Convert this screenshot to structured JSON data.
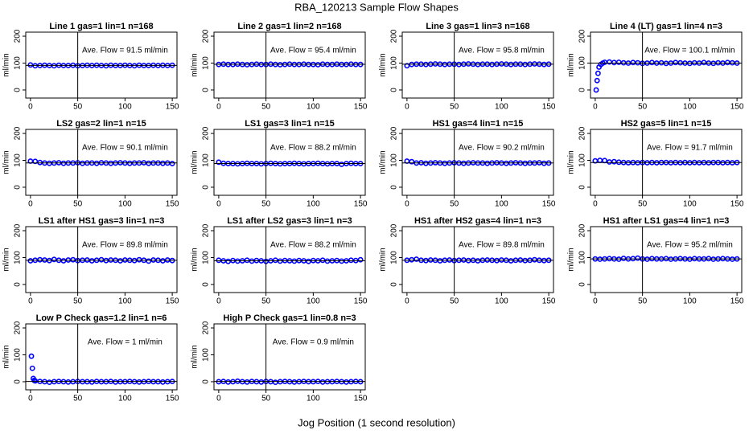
{
  "title": "RBA_120213  Sample Flow Shapes",
  "xlabel": "Jog Position (1 second resolution)",
  "chart_data": [
    {
      "type": "scatter",
      "title": "Line 1 gas=1 lin=1 n=168",
      "ylabel": "ml/min",
      "color": "#0000ff",
      "xlim": [
        -5,
        155
      ],
      "xticks": [
        0,
        50,
        100,
        150
      ],
      "ylim": [
        -30,
        215
      ],
      "yticks": [
        0,
        100,
        200
      ],
      "vline": 50,
      "mean": {
        "value": 91.5,
        "label": "Ave. Flow = 91.5  ml/min"
      },
      "x": [
        0,
        5,
        10,
        15,
        20,
        25,
        30,
        35,
        40,
        45,
        50,
        55,
        60,
        65,
        70,
        75,
        80,
        85,
        90,
        95,
        100,
        105,
        110,
        115,
        120,
        125,
        130,
        135,
        140,
        145,
        150
      ],
      "values": [
        93,
        90,
        91,
        92,
        91,
        90,
        92,
        91,
        91,
        92,
        90,
        91,
        92,
        91,
        92,
        91,
        90,
        92,
        91,
        91,
        92,
        91,
        90,
        92,
        91,
        91,
        92,
        91,
        92,
        91,
        92
      ]
    },
    {
      "type": "scatter",
      "title": "Line 2 gas=1 lin=2 n=168",
      "ylabel": "ml/min",
      "color": "#0000ff",
      "xlim": [
        -5,
        155
      ],
      "xticks": [
        0,
        50,
        100,
        150
      ],
      "ylim": [
        -30,
        215
      ],
      "yticks": [
        0,
        100,
        200
      ],
      "vline": 50,
      "mean": {
        "value": 95.4,
        "label": "Ave. Flow = 95.4  ml/min"
      },
      "x": [
        0,
        5,
        10,
        15,
        20,
        25,
        30,
        35,
        40,
        45,
        50,
        55,
        60,
        65,
        70,
        75,
        80,
        85,
        90,
        95,
        100,
        105,
        110,
        115,
        120,
        125,
        130,
        135,
        140,
        145,
        150
      ],
      "values": [
        95,
        96,
        95,
        95,
        96,
        95,
        94,
        95,
        96,
        95,
        95,
        96,
        95,
        94,
        95,
        96,
        95,
        95,
        96,
        95,
        95,
        94,
        96,
        95,
        95,
        96,
        95,
        95,
        96,
        95,
        95
      ]
    },
    {
      "type": "scatter",
      "title": "Line 3 gas=1 lin=3 n=168",
      "ylabel": "ml/min",
      "color": "#0000ff",
      "xlim": [
        -5,
        155
      ],
      "xticks": [
        0,
        50,
        100,
        150
      ],
      "ylim": [
        -30,
        215
      ],
      "yticks": [
        0,
        100,
        200
      ],
      "vline": 50,
      "mean": {
        "value": 95.8,
        "label": "Ave. Flow = 95.8  ml/min"
      },
      "x": [
        0,
        5,
        10,
        15,
        20,
        25,
        30,
        35,
        40,
        45,
        50,
        55,
        60,
        65,
        70,
        75,
        80,
        85,
        90,
        95,
        100,
        105,
        110,
        115,
        120,
        125,
        130,
        135,
        140,
        145,
        150
      ],
      "values": [
        90,
        95,
        96,
        96,
        95,
        96,
        97,
        96,
        95,
        96,
        96,
        95,
        96,
        97,
        96,
        95,
        96,
        96,
        95,
        96,
        97,
        96,
        95,
        96,
        96,
        95,
        96,
        97,
        96,
        95,
        96
      ]
    },
    {
      "type": "scatter",
      "title": "Line 4 (LT) gas=1 lin=4 n=3",
      "ylabel": "ml/min",
      "color": "#0000ff",
      "xlim": [
        -5,
        155
      ],
      "xticks": [
        0,
        50,
        100,
        150
      ],
      "ylim": [
        -30,
        215
      ],
      "yticks": [
        0,
        100,
        200
      ],
      "vline": 50,
      "mean": {
        "value": 100.1,
        "label": "Ave. Flow = 100.1  ml/min"
      },
      "x": [
        1,
        2,
        3,
        4,
        6,
        8,
        10,
        15,
        20,
        25,
        30,
        35,
        40,
        45,
        50,
        55,
        60,
        65,
        70,
        75,
        80,
        85,
        90,
        95,
        100,
        105,
        110,
        115,
        120,
        125,
        130,
        135,
        140,
        145,
        150
      ],
      "values": [
        0,
        35,
        62,
        85,
        95,
        100,
        103,
        104,
        102,
        103,
        101,
        100,
        102,
        101,
        99,
        100,
        102,
        100,
        101,
        99,
        100,
        102,
        101,
        100,
        99,
        101,
        100,
        102,
        100,
        99,
        101,
        100,
        102,
        101,
        100
      ]
    },
    {
      "type": "scatter",
      "title": "LS2 gas=2 lin=1 n=15",
      "ylabel": "ml/min",
      "color": "#0000ff",
      "xlim": [
        -5,
        155
      ],
      "xticks": [
        0,
        50,
        100,
        150
      ],
      "ylim": [
        -30,
        215
      ],
      "yticks": [
        0,
        100,
        200
      ],
      "vline": 50,
      "mean": {
        "value": 90.1,
        "label": "Ave. Flow = 90.1  ml/min"
      },
      "x": [
        0,
        5,
        10,
        15,
        20,
        25,
        30,
        35,
        40,
        45,
        50,
        55,
        60,
        65,
        70,
        75,
        80,
        85,
        90,
        95,
        100,
        105,
        110,
        115,
        120,
        125,
        130,
        135,
        140,
        145,
        150
      ],
      "values": [
        97,
        96,
        92,
        90,
        89,
        90,
        91,
        89,
        90,
        90,
        91,
        89,
        90,
        90,
        89,
        91,
        90,
        89,
        90,
        91,
        90,
        89,
        90,
        90,
        91,
        89,
        90,
        90,
        89,
        90,
        88
      ]
    },
    {
      "type": "scatter",
      "title": "LS1 gas=3 lin=1 n=15",
      "ylabel": "ml/min",
      "color": "#0000ff",
      "xlim": [
        -5,
        155
      ],
      "xticks": [
        0,
        50,
        100,
        150
      ],
      "ylim": [
        -30,
        215
      ],
      "yticks": [
        0,
        100,
        200
      ],
      "vline": 50,
      "mean": {
        "value": 88.2,
        "label": "Ave. Flow = 88.2  ml/min"
      },
      "x": [
        0,
        5,
        10,
        15,
        20,
        25,
        30,
        35,
        40,
        45,
        50,
        55,
        60,
        65,
        70,
        75,
        80,
        85,
        90,
        95,
        100,
        105,
        110,
        115,
        120,
        125,
        130,
        135,
        140,
        145,
        150
      ],
      "values": [
        93,
        89,
        88,
        88,
        87,
        88,
        89,
        88,
        88,
        87,
        88,
        89,
        88,
        87,
        88,
        88,
        89,
        88,
        87,
        88,
        88,
        89,
        88,
        87,
        88,
        88,
        85,
        88,
        89,
        88,
        88
      ]
    },
    {
      "type": "scatter",
      "title": "HS1 gas=4 lin=1 n=15",
      "ylabel": "ml/min",
      "color": "#0000ff",
      "xlim": [
        -5,
        155
      ],
      "xticks": [
        0,
        50,
        100,
        150
      ],
      "ylim": [
        -30,
        215
      ],
      "yticks": [
        0,
        100,
        200
      ],
      "vline": 50,
      "mean": {
        "value": 90.2,
        "label": "Ave. Flow = 90.2  ml/min"
      },
      "x": [
        0,
        5,
        10,
        15,
        20,
        25,
        30,
        35,
        40,
        45,
        50,
        55,
        60,
        65,
        70,
        75,
        80,
        85,
        90,
        95,
        100,
        105,
        110,
        115,
        120,
        125,
        130,
        135,
        140,
        145,
        150
      ],
      "values": [
        97,
        95,
        90,
        91,
        89,
        90,
        91,
        90,
        89,
        90,
        91,
        90,
        89,
        90,
        91,
        90,
        90,
        89,
        90,
        91,
        90,
        89,
        90,
        91,
        90,
        89,
        90,
        90,
        91,
        89,
        90
      ]
    },
    {
      "type": "scatter",
      "title": "HS2 gas=5 lin=1 n=15",
      "ylabel": "ml/min",
      "color": "#0000ff",
      "xlim": [
        -5,
        155
      ],
      "xticks": [
        0,
        50,
        100,
        150
      ],
      "ylim": [
        -30,
        215
      ],
      "yticks": [
        0,
        100,
        200
      ],
      "vline": 50,
      "mean": {
        "value": 91.7,
        "label": "Ave. Flow = 91.7  ml/min"
      },
      "x": [
        0,
        5,
        10,
        15,
        20,
        25,
        30,
        35,
        40,
        45,
        50,
        55,
        60,
        65,
        70,
        75,
        80,
        85,
        90,
        95,
        100,
        105,
        110,
        115,
        120,
        125,
        130,
        135,
        140,
        145,
        150
      ],
      "values": [
        98,
        100,
        99,
        94,
        95,
        93,
        92,
        91,
        92,
        91,
        92,
        91,
        92,
        91,
        92,
        92,
        91,
        92,
        91,
        92,
        91,
        92,
        91,
        92,
        91,
        92,
        92,
        91,
        92,
        91,
        92
      ]
    },
    {
      "type": "scatter",
      "title": "LS1 after HS1 gas=3 lin=1 n=3",
      "ylabel": "ml/min",
      "color": "#0000ff",
      "xlim": [
        -5,
        155
      ],
      "xticks": [
        0,
        50,
        100,
        150
      ],
      "ylim": [
        -30,
        215
      ],
      "yticks": [
        0,
        100,
        200
      ],
      "vline": 50,
      "mean": {
        "value": 89.8,
        "label": "Ave. Flow = 89.8  ml/min"
      },
      "x": [
        0,
        5,
        10,
        15,
        20,
        25,
        30,
        35,
        40,
        45,
        50,
        55,
        60,
        65,
        70,
        75,
        80,
        85,
        90,
        95,
        100,
        105,
        110,
        115,
        120,
        125,
        130,
        135,
        140,
        145,
        150
      ],
      "values": [
        88,
        90,
        92,
        91,
        89,
        93,
        90,
        88,
        91,
        92,
        89,
        90,
        91,
        88,
        90,
        92,
        89,
        91,
        90,
        88,
        91,
        90,
        89,
        92,
        90,
        87,
        91,
        90,
        88,
        91,
        89
      ]
    },
    {
      "type": "scatter",
      "title": "LS1 after LS2 gas=3 lin=1 n=3",
      "ylabel": "ml/min",
      "color": "#0000ff",
      "xlim": [
        -5,
        155
      ],
      "xticks": [
        0,
        50,
        100,
        150
      ],
      "ylim": [
        -30,
        215
      ],
      "yticks": [
        0,
        100,
        200
      ],
      "vline": 50,
      "mean": {
        "value": 88.2,
        "label": "Ave. Flow = 88.2  ml/min"
      },
      "x": [
        0,
        5,
        10,
        15,
        20,
        25,
        30,
        35,
        40,
        45,
        50,
        55,
        60,
        65,
        70,
        75,
        80,
        85,
        90,
        95,
        100,
        105,
        110,
        115,
        120,
        125,
        130,
        135,
        140,
        145,
        150
      ],
      "values": [
        90,
        88,
        86,
        89,
        87,
        88,
        90,
        87,
        89,
        88,
        86,
        88,
        90,
        87,
        89,
        88,
        87,
        89,
        88,
        86,
        89,
        88,
        90,
        87,
        88,
        89,
        87,
        88,
        90,
        89,
        92
      ]
    },
    {
      "type": "scatter",
      "title": "HS1 after HS2 gas=4 lin=1 n=3",
      "ylabel": "ml/min",
      "color": "#0000ff",
      "xlim": [
        -5,
        155
      ],
      "xticks": [
        0,
        50,
        100,
        150
      ],
      "ylim": [
        -30,
        215
      ],
      "yticks": [
        0,
        100,
        200
      ],
      "vline": 50,
      "mean": {
        "value": 89.8,
        "label": "Ave. Flow = 89.8  ml/min"
      },
      "x": [
        0,
        5,
        10,
        15,
        20,
        25,
        30,
        35,
        40,
        45,
        50,
        55,
        60,
        65,
        70,
        75,
        80,
        85,
        90,
        95,
        100,
        105,
        110,
        115,
        120,
        125,
        130,
        135,
        140,
        145,
        150
      ],
      "values": [
        90,
        92,
        94,
        90,
        89,
        91,
        90,
        88,
        90,
        91,
        89,
        90,
        91,
        89,
        90,
        88,
        90,
        91,
        90,
        89,
        91,
        90,
        88,
        90,
        91,
        89,
        90,
        92,
        90,
        89,
        90
      ]
    },
    {
      "type": "scatter",
      "title": "HS1 after LS1 gas=4 lin=1 n=3",
      "ylabel": "ml/min",
      "color": "#0000ff",
      "xlim": [
        -5,
        155
      ],
      "xticks": [
        0,
        50,
        100,
        150
      ],
      "ylim": [
        -30,
        215
      ],
      "yticks": [
        0,
        100,
        200
      ],
      "vline": 50,
      "mean": {
        "value": 95.2,
        "label": "Ave. Flow = 95.2  ml/min"
      },
      "x": [
        0,
        5,
        10,
        15,
        20,
        25,
        30,
        35,
        40,
        45,
        50,
        55,
        60,
        65,
        70,
        75,
        80,
        85,
        90,
        95,
        100,
        105,
        110,
        115,
        120,
        125,
        130,
        135,
        140,
        145,
        150
      ],
      "values": [
        95,
        94,
        95,
        96,
        95,
        94,
        97,
        95,
        96,
        98,
        95,
        94,
        96,
        95,
        95,
        96,
        94,
        95,
        96,
        95,
        94,
        96,
        95,
        95,
        96,
        94,
        95,
        96,
        95,
        94,
        95
      ]
    },
    {
      "type": "scatter",
      "title": "Low P Check gas=1.2 lin=1 n=6",
      "ylabel": "ml/min",
      "color": "#0000ff",
      "xlim": [
        -5,
        155
      ],
      "xticks": [
        0,
        50,
        100,
        150
      ],
      "ylim": [
        -30,
        215
      ],
      "yticks": [
        0,
        100,
        200
      ],
      "vline": 50,
      "mean": {
        "value": 1,
        "label": "Ave. Flow = 1  ml/min"
      },
      "x": [
        1,
        2,
        3,
        4,
        5,
        10,
        15,
        20,
        25,
        30,
        35,
        40,
        45,
        50,
        55,
        60,
        65,
        70,
        75,
        80,
        85,
        90,
        95,
        100,
        105,
        110,
        115,
        120,
        125,
        130,
        135,
        140,
        145,
        150
      ],
      "values": [
        95,
        50,
        12,
        5,
        3,
        1,
        0,
        -2,
        0,
        1,
        0,
        -1,
        0,
        1,
        0,
        0,
        -1,
        1,
        0,
        0,
        1,
        -1,
        0,
        0,
        1,
        0,
        -1,
        0,
        1,
        0,
        0,
        -1,
        0,
        1
      ]
    },
    {
      "type": "scatter",
      "title": "High P Check gas=1 lin=0.8 n=3",
      "ylabel": "ml/min",
      "color": "#0000ff",
      "xlim": [
        -5,
        155
      ],
      "xticks": [
        0,
        50,
        100,
        150
      ],
      "ylim": [
        -30,
        215
      ],
      "yticks": [
        0,
        100,
        200
      ],
      "vline": 50,
      "mean": {
        "value": 0.9,
        "label": "Ave. Flow = 0.9  ml/min"
      },
      "x": [
        0,
        5,
        10,
        15,
        20,
        25,
        30,
        35,
        40,
        45,
        50,
        55,
        60,
        65,
        70,
        75,
        80,
        85,
        90,
        95,
        100,
        105,
        110,
        115,
        120,
        125,
        130,
        135,
        140,
        145,
        150
      ],
      "values": [
        0,
        1,
        -1,
        0,
        2,
        0,
        -1,
        1,
        0,
        -1,
        1,
        0,
        -2,
        0,
        1,
        0,
        -1,
        0,
        1,
        0,
        0,
        1,
        -1,
        0,
        0,
        1,
        0,
        -1,
        0,
        1,
        0
      ]
    }
  ]
}
